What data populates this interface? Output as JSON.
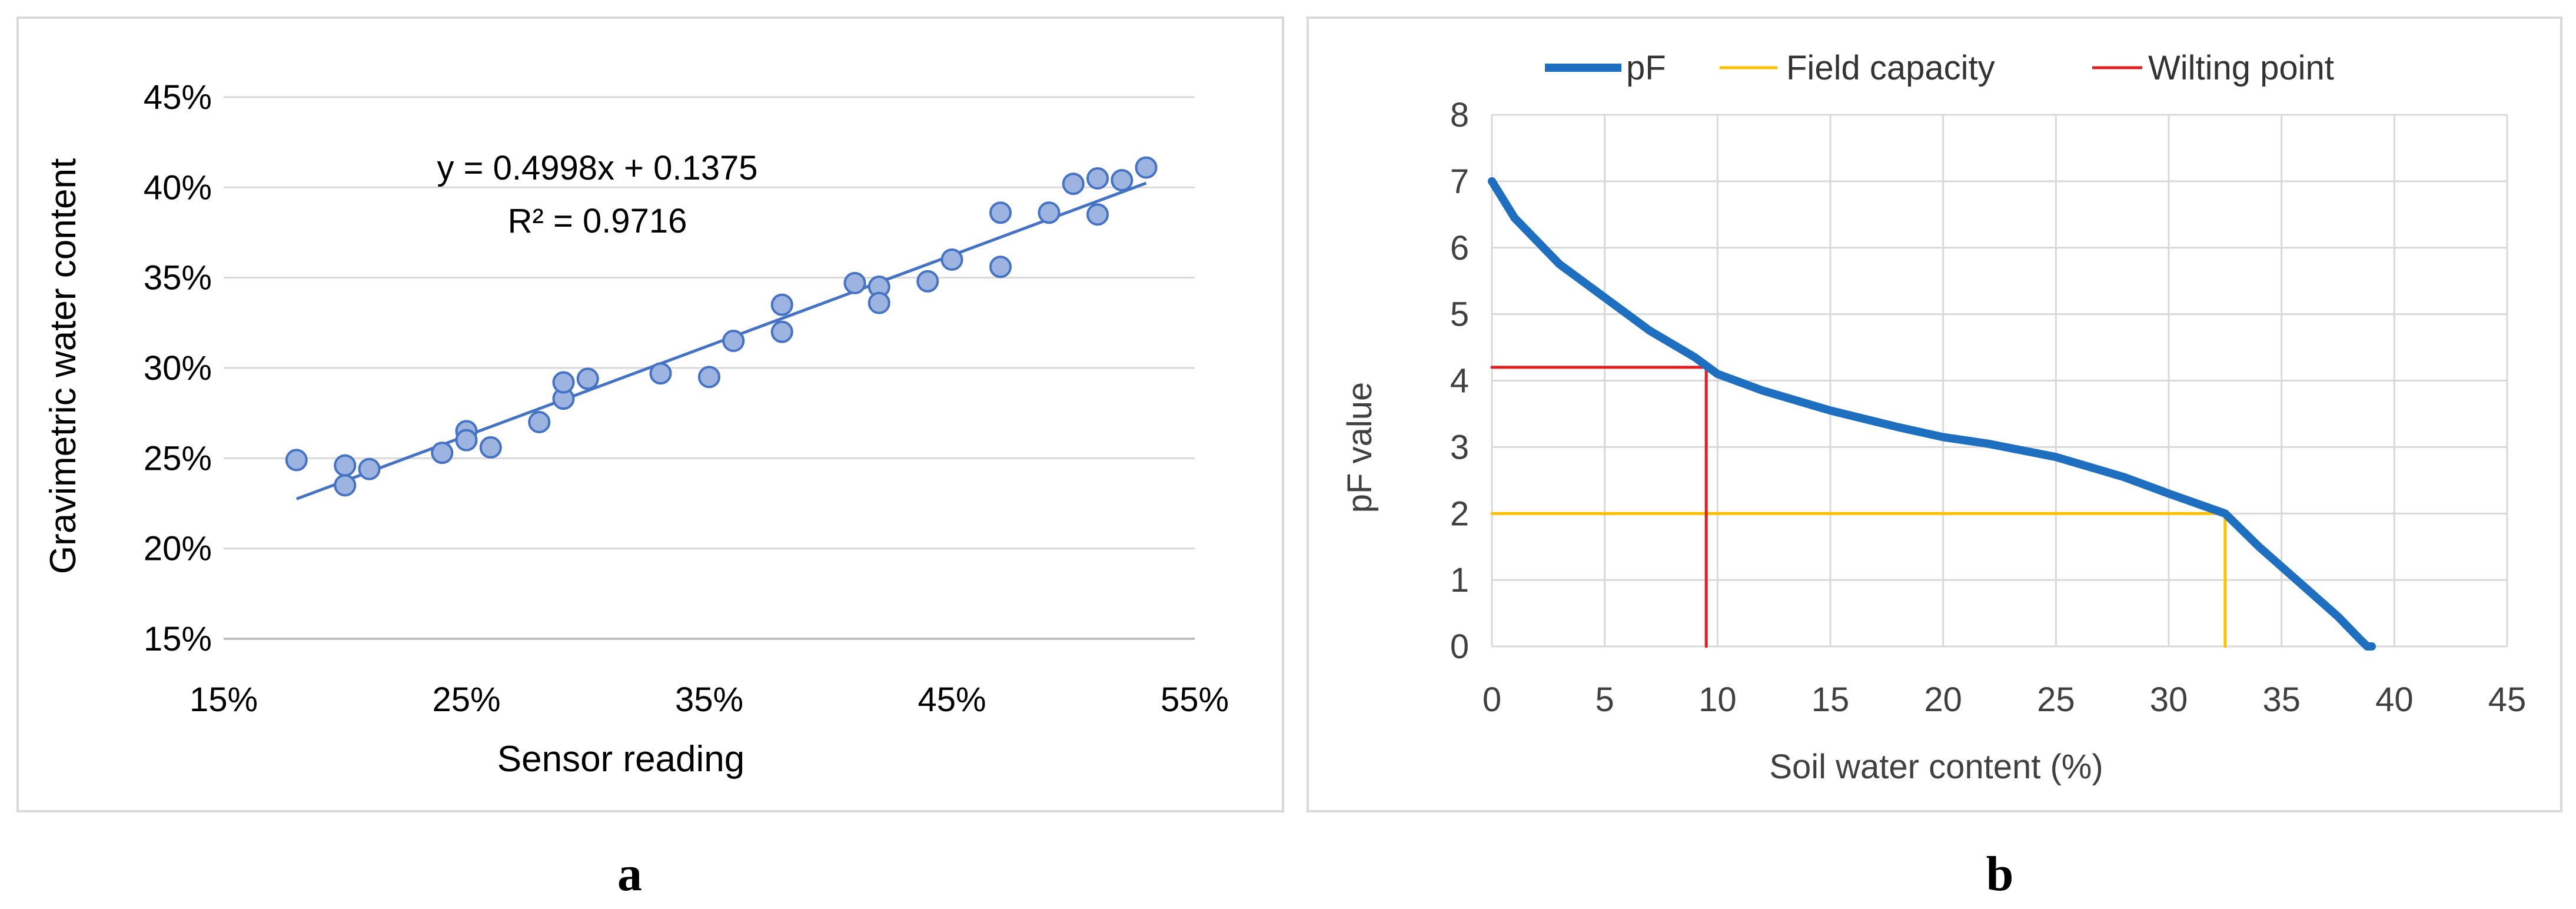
{
  "chart_data": [
    {
      "panel_label": "a",
      "type": "scatter",
      "xlabel": "Sensor reading",
      "ylabel": "Gravimetric water content",
      "xlim": [
        0.15,
        0.55
      ],
      "ylim": [
        0.15,
        0.45
      ],
      "xticks": [
        0.15,
        0.25,
        0.35,
        0.45,
        0.55
      ],
      "xtick_labels": [
        "15%",
        "25%",
        "35%",
        "45%",
        "55%"
      ],
      "yticks": [
        0.15,
        0.2,
        0.25,
        0.3,
        0.35,
        0.4,
        0.45
      ],
      "ytick_labels": [
        "15%",
        "20%",
        "25%",
        "30%",
        "35%",
        "40%",
        "45%"
      ],
      "grid": "horizontal",
      "legend": "none",
      "marker_color": "#9db3e0",
      "marker_edge_color": "#4472c4",
      "trendline_color": "#4472c4",
      "trendline": {
        "slope": 0.4998,
        "intercept": 0.1375,
        "x_range": [
          0.18,
          0.53
        ]
      },
      "annotations": [
        "y = 0.4998x + 0.1375",
        "R² = 0.9716"
      ],
      "x": [
        0.18,
        0.2,
        0.2,
        0.21,
        0.24,
        0.25,
        0.25,
        0.26,
        0.28,
        0.29,
        0.29,
        0.3,
        0.33,
        0.35,
        0.36,
        0.38,
        0.38,
        0.41,
        0.42,
        0.42,
        0.44,
        0.45,
        0.47,
        0.47,
        0.49,
        0.5,
        0.51,
        0.51,
        0.52,
        0.53
      ],
      "y": [
        0.249,
        0.246,
        0.235,
        0.244,
        0.253,
        0.265,
        0.26,
        0.256,
        0.27,
        0.283,
        0.292,
        0.294,
        0.297,
        0.295,
        0.315,
        0.335,
        0.32,
        0.347,
        0.345,
        0.336,
        0.348,
        0.36,
        0.386,
        0.356,
        0.386,
        0.402,
        0.405,
        0.385,
        0.404,
        0.411
      ]
    },
    {
      "panel_label": "b",
      "type": "line",
      "xlabel": "Soil water content (%)",
      "ylabel": "pF value",
      "xlim": [
        0,
        45
      ],
      "ylim": [
        0,
        8
      ],
      "xticks": [
        0,
        5,
        10,
        15,
        20,
        25,
        30,
        35,
        40,
        45
      ],
      "yticks": [
        0,
        1,
        2,
        3,
        4,
        5,
        6,
        7,
        8
      ],
      "grid": "both",
      "legend": "top",
      "series": [
        {
          "name": "pF",
          "color": "#1f6fc1",
          "x": [
            0,
            1,
            2,
            3,
            5,
            7,
            9,
            10,
            12,
            15,
            18,
            20,
            22,
            25,
            28,
            30,
            32.5,
            34,
            36,
            37.5,
            38.5,
            38.8,
            39
          ],
          "y": [
            7.0,
            6.45,
            6.1,
            5.75,
            5.25,
            4.75,
            4.35,
            4.1,
            3.85,
            3.55,
            3.3,
            3.15,
            3.05,
            2.85,
            2.55,
            2.3,
            2.0,
            1.5,
            0.9,
            0.45,
            0.1,
            0.0,
            0.0
          ]
        },
        {
          "name": "Field capacity",
          "color": "#ffc000",
          "x": [
            0,
            32.5,
            32.5
          ],
          "y": [
            2,
            2,
            0
          ]
        },
        {
          "name": "Wilting point",
          "color": "#e02020",
          "x": [
            0,
            9.5,
            9.5
          ],
          "y": [
            4.2,
            4.2,
            0
          ]
        }
      ]
    }
  ]
}
